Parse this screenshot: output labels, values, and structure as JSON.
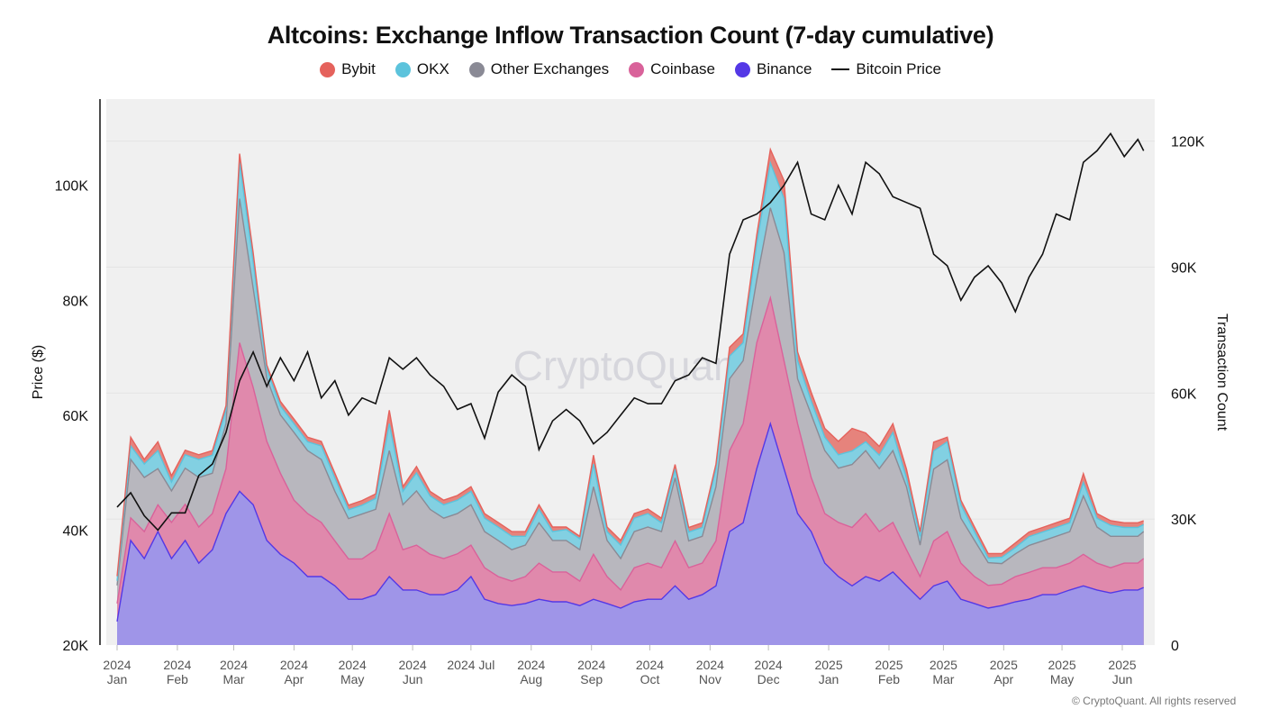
{
  "chart_data": {
    "type": "area",
    "stacked": true,
    "title": "Altcoins: Exchange Inflow Transaction Count (7-day cumulative)",
    "legend_position": "top",
    "legend": [
      "Bybit",
      "OKX",
      "Other Exchanges",
      "Coinbase",
      "Binance",
      "Bitcoin Price"
    ],
    "ylabel_left": "Price ($)",
    "ylabel_right": "Transaction Count",
    "ylim_left": [
      20000,
      115000
    ],
    "ylim_right": [
      0,
      130000
    ],
    "left_ticks": [
      {
        "value": 20000,
        "label": "20K"
      },
      {
        "value": 40000,
        "label": "40K"
      },
      {
        "value": 60000,
        "label": "60K"
      },
      {
        "value": 80000,
        "label": "80K"
      },
      {
        "value": 100000,
        "label": "100K"
      }
    ],
    "right_ticks": [
      {
        "value": 0,
        "label": "0"
      },
      {
        "value": 30000,
        "label": "30K"
      },
      {
        "value": 60000,
        "label": "60K"
      },
      {
        "value": 90000,
        "label": "90K"
      },
      {
        "value": 120000,
        "label": "120K"
      }
    ],
    "x_ticks": [
      {
        "date": "2024-01-01",
        "l1": "2024",
        "l2": "Jan"
      },
      {
        "date": "2024-02-01",
        "l1": "2024",
        "l2": "Feb"
      },
      {
        "date": "2024-03-01",
        "l1": "2024",
        "l2": "Mar"
      },
      {
        "date": "2024-04-01",
        "l1": "2024",
        "l2": "Apr"
      },
      {
        "date": "2024-05-01",
        "l1": "2024",
        "l2": "May"
      },
      {
        "date": "2024-06-01",
        "l1": "2024",
        "l2": "Jun"
      },
      {
        "date": "2024-07-01",
        "l1": "2024 Jul",
        "l2": ""
      },
      {
        "date": "2024-08-01",
        "l1": "2024",
        "l2": "Aug"
      },
      {
        "date": "2024-09-01",
        "l1": "2024",
        "l2": "Sep"
      },
      {
        "date": "2024-10-01",
        "l1": "2024",
        "l2": "Oct"
      },
      {
        "date": "2024-11-01",
        "l1": "2024",
        "l2": "Nov"
      },
      {
        "date": "2024-12-01",
        "l1": "2024",
        "l2": "Dec"
      },
      {
        "date": "2025-01-01",
        "l1": "2025",
        "l2": "Jan"
      },
      {
        "date": "2025-02-01",
        "l1": "2025",
        "l2": "Feb"
      },
      {
        "date": "2025-03-01",
        "l1": "2025",
        "l2": "Mar"
      },
      {
        "date": "2025-04-01",
        "l1": "2025",
        "l2": "Apr"
      },
      {
        "date": "2025-05-01",
        "l1": "2025",
        "l2": "May"
      },
      {
        "date": "2025-06-01",
        "l1": "2025",
        "l2": "Jun"
      }
    ],
    "grid": true,
    "x": [
      "2024-01-01",
      "2024-01-08",
      "2024-01-15",
      "2024-01-22",
      "2024-01-29",
      "2024-02-05",
      "2024-02-12",
      "2024-02-19",
      "2024-02-26",
      "2024-03-04",
      "2024-03-11",
      "2024-03-18",
      "2024-03-25",
      "2024-04-01",
      "2024-04-08",
      "2024-04-15",
      "2024-04-22",
      "2024-04-29",
      "2024-05-06",
      "2024-05-13",
      "2024-05-20",
      "2024-05-27",
      "2024-06-03",
      "2024-06-10",
      "2024-06-17",
      "2024-06-24",
      "2024-07-01",
      "2024-07-08",
      "2024-07-15",
      "2024-07-22",
      "2024-07-29",
      "2024-08-05",
      "2024-08-12",
      "2024-08-19",
      "2024-08-26",
      "2024-09-02",
      "2024-09-09",
      "2024-09-16",
      "2024-09-23",
      "2024-09-30",
      "2024-10-07",
      "2024-10-14",
      "2024-10-21",
      "2024-10-28",
      "2024-11-04",
      "2024-11-11",
      "2024-11-18",
      "2024-11-25",
      "2024-12-02",
      "2024-12-09",
      "2024-12-16",
      "2024-12-23",
      "2024-12-30",
      "2025-01-06",
      "2025-01-13",
      "2025-01-20",
      "2025-01-27",
      "2025-02-03",
      "2025-02-10",
      "2025-02-17",
      "2025-02-24",
      "2025-03-03",
      "2025-03-10",
      "2025-03-17",
      "2025-03-24",
      "2025-03-31",
      "2025-04-07",
      "2025-04-14",
      "2025-04-21",
      "2025-04-28",
      "2025-05-05",
      "2025-05-12",
      "2025-05-19",
      "2025-05-26",
      "2025-06-02",
      "2025-06-09",
      "2025-06-12"
    ],
    "series": [
      {
        "name": "Binance",
        "axis": "right",
        "color": "#5438e6",
        "fill": "#9f95e8",
        "values": [
          5600,
          24900,
          20600,
          27000,
          20600,
          24900,
          19500,
          22700,
          31300,
          36600,
          33400,
          24900,
          21600,
          19500,
          16300,
          16300,
          14100,
          10900,
          10900,
          12000,
          16300,
          13100,
          13100,
          12000,
          12000,
          13100,
          16300,
          10900,
          9900,
          9400,
          9900,
          10900,
          10300,
          10300,
          9400,
          10900,
          9900,
          8800,
          10300,
          10900,
          10900,
          14100,
          10900,
          12000,
          14100,
          27000,
          29100,
          42000,
          52700,
          42000,
          31300,
          27000,
          19500,
          16300,
          14100,
          16300,
          15200,
          17400,
          14100,
          10900,
          14100,
          15200,
          10900,
          9900,
          8800,
          9400,
          10300,
          10900,
          12000,
          12000,
          13100,
          14100,
          13100,
          12400,
          13100,
          13100,
          13700
        ]
      },
      {
        "name": "Coinbase",
        "axis": "right",
        "color": "#d9629a",
        "fill": "#e089ac",
        "values": [
          4300,
          5400,
          6400,
          6400,
          8600,
          8600,
          8600,
          8600,
          10700,
          35400,
          27900,
          23600,
          19300,
          15000,
          15000,
          12900,
          10700,
          9600,
          9600,
          10700,
          15000,
          9600,
          10700,
          9600,
          8600,
          8600,
          7500,
          7500,
          6400,
          5800,
          6400,
          8600,
          7100,
          7100,
          5800,
          10700,
          6400,
          4300,
          8100,
          8600,
          7500,
          10700,
          7500,
          7500,
          10700,
          19300,
          23600,
          30000,
          30000,
          25700,
          21400,
          12900,
          11800,
          12900,
          13900,
          15000,
          11800,
          11800,
          8600,
          5400,
          10700,
          11800,
          8600,
          6400,
          5400,
          5100,
          6000,
          6400,
          6400,
          6400,
          6400,
          7500,
          6400,
          6000,
          6400,
          6400,
          6900
        ]
      },
      {
        "name": "Other Exchanges",
        "axis": "right",
        "color": "#8a8a95",
        "fill": "#b8b7be",
        "values": [
          4300,
          13900,
          12900,
          8600,
          7500,
          8600,
          11800,
          9600,
          10700,
          34300,
          23600,
          15000,
          13900,
          16100,
          15000,
          15000,
          11800,
          9600,
          10700,
          9600,
          15000,
          10700,
          12900,
          10700,
          9600,
          9600,
          9600,
          8600,
          8600,
          7500,
          7500,
          9600,
          7500,
          7500,
          7500,
          16100,
          8600,
          7500,
          8600,
          8600,
          8600,
          15000,
          6400,
          6400,
          12900,
          17100,
          15000,
          15000,
          21400,
          25700,
          10700,
          15000,
          15000,
          12900,
          15000,
          15000,
          15000,
          17100,
          15000,
          7500,
          17100,
          17100,
          10700,
          8600,
          5400,
          4900,
          5400,
          6400,
          6400,
          7500,
          7500,
          13900,
          8600,
          7500,
          6400,
          6400,
          6400
        ]
      },
      {
        "name": "OKX",
        "axis": "right",
        "color": "#5cc3dc",
        "fill": "#82d0e2",
        "values": [
          1100,
          3200,
          3200,
          4300,
          2100,
          3200,
          4300,
          4300,
          3200,
          8600,
          6400,
          2100,
          2100,
          2100,
          2100,
          3200,
          3200,
          2100,
          2100,
          2600,
          6400,
          3200,
          4300,
          3200,
          3200,
          3200,
          3200,
          3200,
          3200,
          3200,
          2100,
          3200,
          2100,
          2600,
          2600,
          5400,
          2100,
          3200,
          3200,
          3200,
          2100,
          2100,
          2100,
          2100,
          4300,
          5400,
          4300,
          8600,
          10700,
          12900,
          4300,
          3200,
          3200,
          3200,
          3200,
          2100,
          3200,
          4300,
          2100,
          2100,
          4300,
          4300,
          3200,
          2100,
          1100,
          1500,
          1500,
          2100,
          2100,
          2100,
          2100,
          3200,
          2100,
          2600,
          2100,
          2100,
          1700
        ]
      },
      {
        "name": "Bybit",
        "axis": "right",
        "color": "#e5625c",
        "fill": "#e6837c",
        "values": [
          1100,
          2100,
          1100,
          2100,
          1500,
          1100,
          1100,
          1100,
          1100,
          2100,
          2100,
          1100,
          1100,
          1100,
          1100,
          1100,
          1100,
          1100,
          1100,
          1100,
          3200,
          1100,
          1500,
          1100,
          1100,
          1100,
          1100,
          1100,
          1100,
          1100,
          1100,
          1100,
          1100,
          600,
          600,
          2100,
          1100,
          1100,
          1100,
          1100,
          1100,
          1100,
          1100,
          1100,
          1100,
          2100,
          2100,
          2100,
          3200,
          4300,
          2100,
          2100,
          2100,
          3200,
          5400,
          2100,
          2100,
          2100,
          2100,
          1100,
          2100,
          1100,
          1100,
          1100,
          1100,
          900,
          1100,
          1100,
          1100,
          1100,
          1100,
          2100,
          1100,
          1100,
          1100,
          1100,
          900
        ]
      },
      {
        "name": "Bitcoin Price",
        "axis": "left",
        "type": "line",
        "color": "#111111",
        "values": [
          44000,
          46500,
          42500,
          40000,
          43000,
          43000,
          49500,
          51500,
          57000,
          66000,
          71000,
          65000,
          70000,
          66000,
          71000,
          63000,
          66000,
          60000,
          63000,
          62000,
          70000,
          68000,
          70000,
          67000,
          65000,
          61000,
          62000,
          56000,
          64000,
          67000,
          65000,
          54000,
          59000,
          61000,
          59000,
          55000,
          57000,
          60000,
          63000,
          62000,
          62000,
          66000,
          67000,
          70000,
          69000,
          88000,
          94000,
          95000,
          97000,
          100000,
          104000,
          95000,
          94000,
          100000,
          95000,
          104000,
          102000,
          98000,
          97000,
          96000,
          88000,
          86000,
          80000,
          84000,
          86000,
          83000,
          78000,
          84000,
          88000,
          95000,
          94000,
          104000,
          106000,
          109000,
          105000,
          108000,
          106000
        ]
      }
    ]
  },
  "legend_colors": {
    "Bybit": "#e5625c",
    "OKX": "#5cc3dc",
    "Other Exchanges": "#8a8a95",
    "Coinbase": "#d9629a",
    "Binance": "#5438e6"
  },
  "watermark": "CryptoQuant",
  "copyright": "© CryptoQuant. All rights reserved"
}
